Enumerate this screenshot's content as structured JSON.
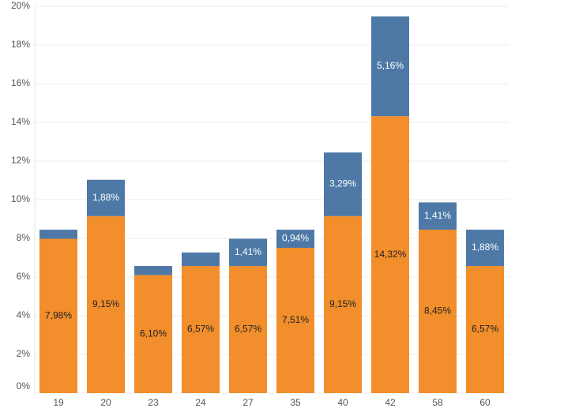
{
  "chart_data": {
    "type": "stacked_bar",
    "categories": [
      "19",
      "20",
      "23",
      "24",
      "27",
      "35",
      "40",
      "42",
      "58",
      "60"
    ],
    "series": [
      {
        "color": "#f28e2b",
        "values": [
          7.98,
          9.15,
          6.1,
          6.57,
          6.57,
          7.51,
          9.15,
          14.32,
          8.45,
          6.57
        ],
        "value_labels": [
          "7,98%",
          "9,15%",
          "6,10%",
          "6,57%",
          "6,57%",
          "7,51%",
          "9,15%",
          "14,32%",
          "8,45%",
          "6,57%"
        ]
      },
      {
        "color": "#4e79a7",
        "values": [
          0.47,
          1.88,
          0.47,
          0.7,
          1.41,
          0.94,
          3.29,
          5.16,
          1.41,
          1.88
        ],
        "value_labels": [
          null,
          "1,88%",
          null,
          null,
          "1,41%",
          "0,94%",
          "3,29%",
          "5,16%",
          "1,41%",
          "1,88%"
        ]
      }
    ],
    "ylim": [
      0,
      20
    ],
    "yticks": [
      {
        "value": 0,
        "label": "0%"
      },
      {
        "value": 2,
        "label": "2%"
      },
      {
        "value": 4,
        "label": "4%"
      },
      {
        "value": 6,
        "label": "6%"
      },
      {
        "value": 8,
        "label": "8%"
      },
      {
        "value": 10,
        "label": "10%"
      },
      {
        "value": 12,
        "label": "12%"
      },
      {
        "value": 14,
        "label": "14%"
      },
      {
        "value": 16,
        "label": "16%"
      },
      {
        "value": 18,
        "label": "18%"
      },
      {
        "value": 20,
        "label": "20%"
      }
    ],
    "grid": true
  }
}
